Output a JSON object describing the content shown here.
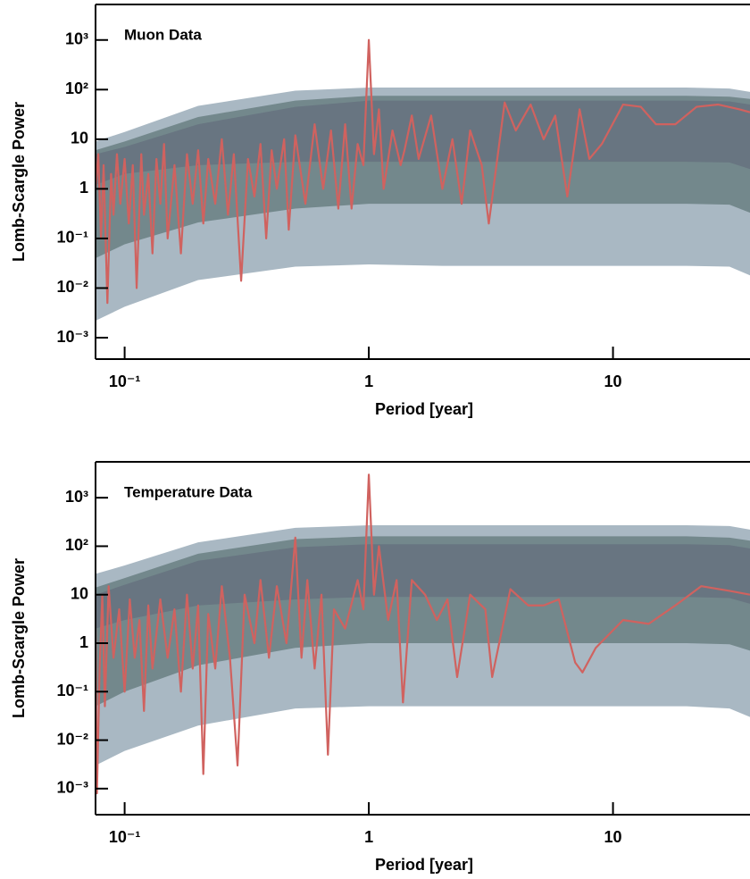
{
  "chart_data": [
    {
      "type": "line",
      "title": "Muon Data",
      "x_label": "Period [year]",
      "y_label": "Lomb-Scargle Power",
      "log_x": true,
      "log_y": true,
      "xlim": [
        0.076,
        36.4
      ],
      "ylim": [
        0.00037,
        5200
      ],
      "xticks": [
        {
          "value": 0.1,
          "label": "10⁻¹"
        },
        1,
        10
      ],
      "yticks": [
        {
          "value": 0.001,
          "label": "10⁻³"
        },
        {
          "value": 0.01,
          "label": "10⁻²"
        },
        {
          "value": 0.1,
          "label": "10⁻¹"
        },
        1,
        10,
        {
          "value": 100,
          "label": "10²"
        },
        {
          "value": 1000,
          "label": "10³"
        }
      ],
      "band_x": [
        0.076,
        0.1,
        0.2,
        0.5,
        1,
        2,
        5,
        10,
        20,
        30,
        36.4
      ],
      "bands": [
        {
          "color": "#a9b8c3",
          "lower": [
            0.0022,
            0.0042,
            0.0145,
            0.027,
            0.03,
            0.028,
            0.028,
            0.028,
            0.028,
            0.027,
            0.018
          ],
          "upper": [
            9,
            14,
            47,
            95,
            110,
            110,
            110,
            110,
            110,
            105,
            90
          ]
        },
        {
          "color": "#73888c",
          "lower": [
            0.04,
            0.076,
            0.21,
            0.4,
            0.5,
            0.5,
            0.5,
            0.5,
            0.5,
            0.48,
            0.33
          ],
          "upper": [
            6,
            9,
            28,
            60,
            75,
            75,
            75,
            75,
            75,
            72,
            65
          ]
        },
        {
          "color": "#687581",
          "lower": [
            1.2,
            2,
            3,
            3.5,
            3.5,
            3.5,
            3.5,
            3.5,
            3.5,
            3.4,
            2.5
          ],
          "upper": [
            5,
            7,
            20,
            45,
            60,
            60,
            60,
            60,
            60,
            58,
            50
          ]
        }
      ],
      "color": "#d0625f",
      "x": [
        0.076,
        0.078,
        0.08,
        0.082,
        0.085,
        0.088,
        0.09,
        0.093,
        0.096,
        0.1,
        0.104,
        0.108,
        0.112,
        0.117,
        0.12,
        0.125,
        0.13,
        0.135,
        0.14,
        0.145,
        0.15,
        0.16,
        0.17,
        0.18,
        0.19,
        0.2,
        0.21,
        0.22,
        0.235,
        0.25,
        0.265,
        0.28,
        0.3,
        0.32,
        0.34,
        0.36,
        0.38,
        0.4,
        0.42,
        0.45,
        0.47,
        0.5,
        0.55,
        0.6,
        0.65,
        0.7,
        0.75,
        0.8,
        0.85,
        0.9,
        0.95,
        1.0,
        1.05,
        1.1,
        1.15,
        1.25,
        1.35,
        1.4,
        1.5,
        1.6,
        1.8,
        2.0,
        2.2,
        2.4,
        2.6,
        2.9,
        3.1,
        3.6,
        4.0,
        4.6,
        5.2,
        5.8,
        6.5,
        7.3,
        8.0,
        9.0,
        11,
        13,
        15,
        18,
        22,
        27,
        33,
        36.4
      ],
      "values": [
        1,
        5,
        0.1,
        3,
        0.005,
        2,
        0.3,
        5,
        0.5,
        4,
        0.2,
        3,
        0.01,
        5,
        0.3,
        2,
        0.05,
        4,
        0.5,
        8,
        0.1,
        3,
        0.05,
        5,
        0.5,
        6,
        0.2,
        4,
        0.5,
        10,
        0.3,
        5,
        0.014,
        4,
        0.7,
        8,
        0.1,
        6,
        1,
        10,
        0.15,
        12,
        0.5,
        20,
        1,
        15,
        0.4,
        20,
        0.4,
        8,
        3,
        1000,
        5,
        40,
        1,
        15,
        3,
        6,
        30,
        4,
        30,
        1,
        10,
        0.5,
        15,
        3,
        0.2,
        55,
        15,
        50,
        10,
        30,
        0.7,
        40,
        4,
        8,
        50,
        45,
        20,
        20,
        45,
        50,
        40,
        35
      ]
    },
    {
      "type": "line",
      "title": "Temperature Data",
      "x_label": "Period [year]",
      "y_label": "Lomb-Scargle Power",
      "log_x": true,
      "log_y": true,
      "xlim": [
        0.076,
        36.4
      ],
      "ylim": [
        0.00029,
        5500
      ],
      "xticks": [
        {
          "value": 0.1,
          "label": "10⁻¹"
        },
        1,
        10
      ],
      "yticks": [
        {
          "value": 0.001,
          "label": "10⁻³"
        },
        {
          "value": 0.01,
          "label": "10⁻²"
        },
        {
          "value": 0.1,
          "label": "10⁻¹"
        },
        1,
        10,
        {
          "value": 100,
          "label": "10²"
        },
        {
          "value": 1000,
          "label": "10³"
        }
      ],
      "band_x": [
        0.076,
        0.1,
        0.2,
        0.5,
        1,
        2,
        5,
        10,
        20,
        30,
        36.4
      ],
      "bands": [
        {
          "color": "#a9b8c3",
          "lower": [
            0.003,
            0.006,
            0.02,
            0.045,
            0.05,
            0.05,
            0.05,
            0.05,
            0.05,
            0.045,
            0.03
          ],
          "upper": [
            27,
            40,
            120,
            240,
            270,
            270,
            270,
            270,
            270,
            260,
            220
          ]
        },
        {
          "color": "#73888c",
          "lower": [
            0.05,
            0.1,
            0.35,
            0.8,
            1,
            1,
            1,
            1,
            1,
            0.95,
            0.7
          ],
          "upper": [
            14,
            22,
            70,
            140,
            160,
            160,
            160,
            160,
            160,
            150,
            130
          ]
        },
        {
          "color": "#687581",
          "lower": [
            2,
            3,
            6,
            8,
            9,
            9,
            9,
            9,
            9,
            8.5,
            6.5
          ],
          "upper": [
            10,
            16,
            50,
            95,
            110,
            110,
            110,
            110,
            110,
            105,
            90
          ]
        }
      ],
      "color": "#d0625f",
      "x": [
        0.076,
        0.077,
        0.079,
        0.081,
        0.083,
        0.086,
        0.09,
        0.095,
        0.1,
        0.105,
        0.11,
        0.115,
        0.12,
        0.125,
        0.13,
        0.14,
        0.15,
        0.16,
        0.17,
        0.18,
        0.19,
        0.2,
        0.21,
        0.22,
        0.235,
        0.25,
        0.27,
        0.29,
        0.31,
        0.34,
        0.36,
        0.39,
        0.42,
        0.46,
        0.5,
        0.53,
        0.56,
        0.6,
        0.64,
        0.68,
        0.72,
        0.8,
        0.9,
        0.95,
        1.0,
        1.05,
        1.1,
        1.2,
        1.3,
        1.38,
        1.5,
        1.7,
        1.9,
        2.1,
        2.3,
        2.6,
        3.0,
        3.2,
        3.8,
        4.5,
        5.2,
        6,
        7,
        7.5,
        8.5,
        11,
        14,
        18,
        23,
        30,
        36.4
      ],
      "values": [
        2,
        0.0008,
        0.3,
        10,
        0.05,
        15,
        0.5,
        5,
        0.1,
        8,
        0.5,
        3,
        0.04,
        6,
        0.3,
        8,
        0.5,
        5,
        0.1,
        10,
        0.3,
        6,
        0.002,
        4,
        0.3,
        15,
        0.5,
        0.003,
        10,
        1,
        20,
        0.5,
        15,
        1,
        150,
        0.5,
        20,
        0.3,
        10,
        0.005,
        5,
        2,
        20,
        5,
        3000,
        10,
        100,
        3,
        20,
        0.06,
        20,
        10,
        3,
        8,
        0.2,
        10,
        5,
        0.2,
        13,
        6,
        6,
        8,
        0.4,
        0.25,
        0.8,
        3,
        2.5,
        6,
        15,
        12,
        10
      ]
    }
  ]
}
